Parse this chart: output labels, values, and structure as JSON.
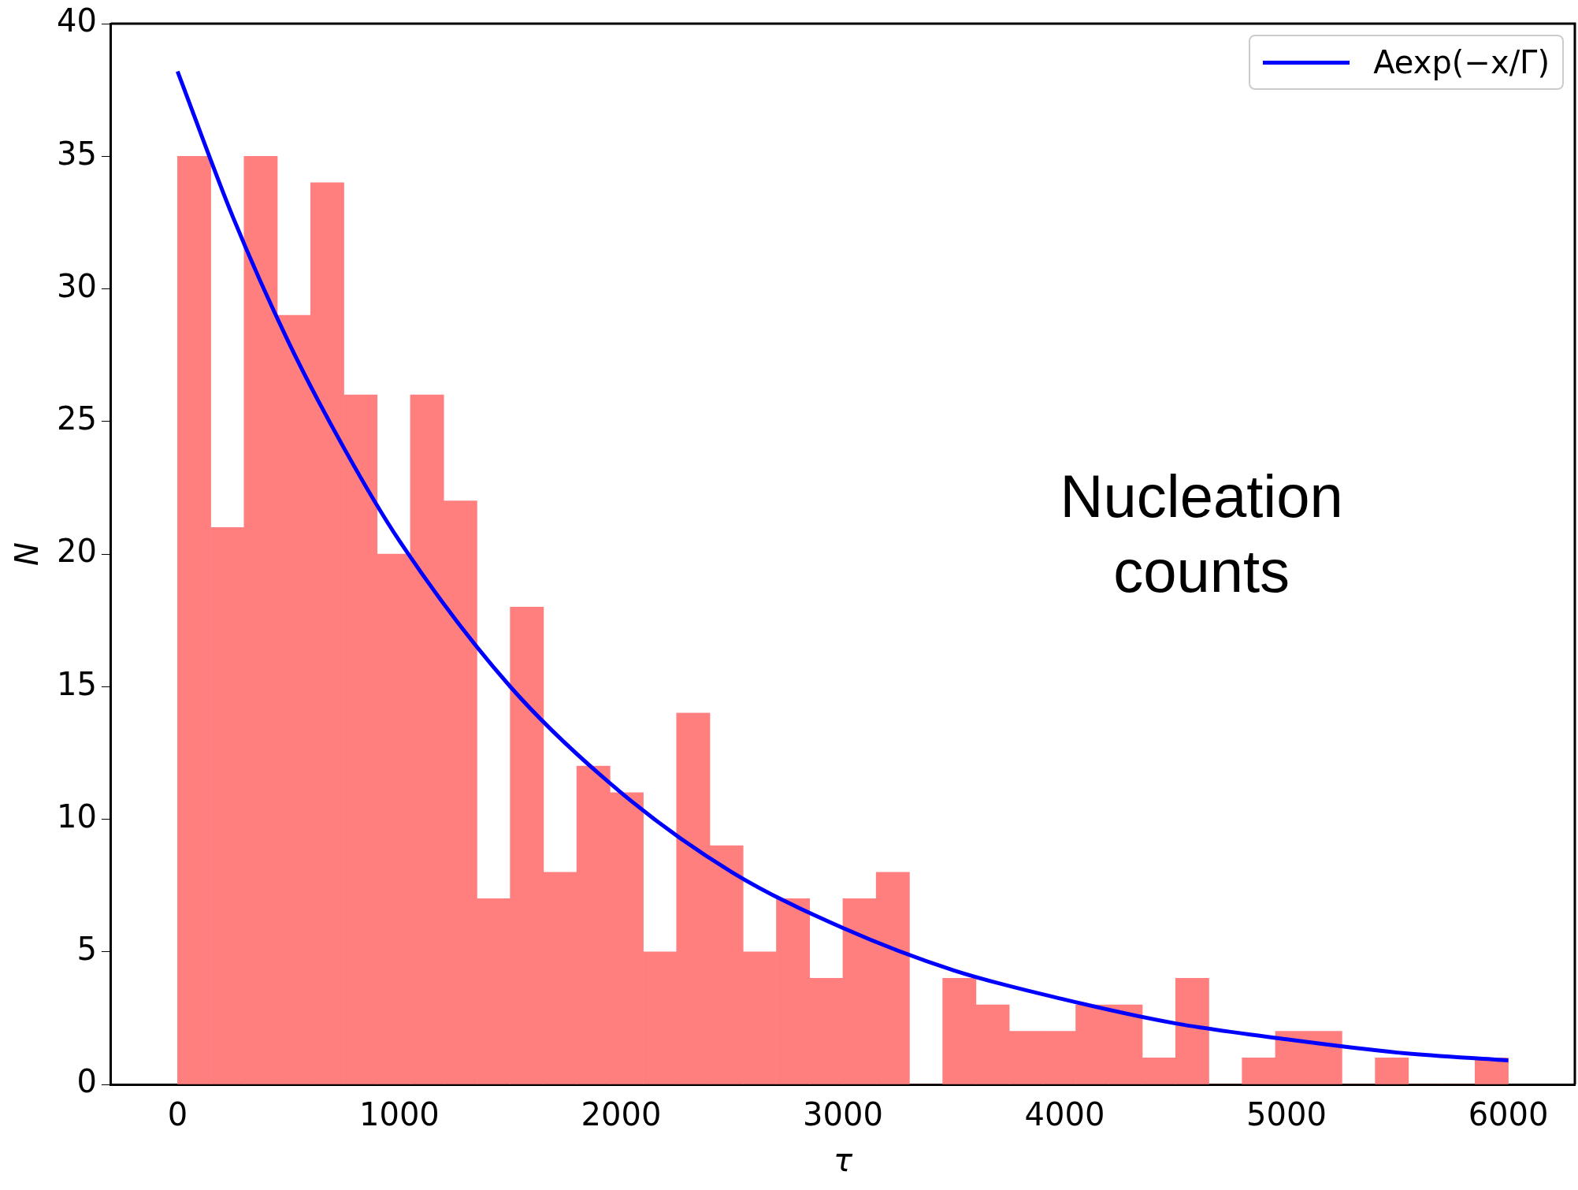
{
  "chart_data": {
    "type": "histogram",
    "xlabel": "τ",
    "ylabel": "N",
    "annotations": [
      "Nucleation counts"
    ],
    "bins": [
      0,
      150,
      300,
      450,
      600,
      750,
      900,
      1050,
      1200,
      1350,
      1500,
      1650,
      1800,
      1950,
      2100,
      2250,
      2400,
      2550,
      2700,
      2850,
      3000,
      3150,
      3300,
      3450,
      3600,
      3750,
      3900,
      4050,
      4200,
      4350,
      4500,
      4650,
      4800,
      4950,
      5100,
      5250,
      5400,
      5550,
      5700,
      5850,
      6000
    ],
    "values": [
      35,
      21,
      35,
      29,
      34,
      26,
      20,
      26,
      22,
      7,
      18,
      8,
      12,
      11,
      5,
      14,
      9,
      5,
      7,
      4,
      7,
      8,
      0,
      4,
      3,
      2,
      2,
      3,
      3,
      1,
      4,
      0,
      1,
      2,
      2,
      0,
      1,
      0,
      0,
      1
    ],
    "color": "#ff7f7f",
    "series": [
      {
        "type": "line",
        "name": "Aexp(−x/Γ)",
        "color": "#0000ff",
        "x": [
          0,
          250,
          500,
          750,
          1000,
          1500,
          2000,
          2500,
          3000,
          3500,
          4000,
          4500,
          5000,
          5500,
          6000
        ],
        "values": [
          38.2,
          32.7,
          28.0,
          24.0,
          20.5,
          15.0,
          11.0,
          8.0,
          5.9,
          4.3,
          3.2,
          2.3,
          1.7,
          1.2,
          0.9
        ]
      }
    ],
    "xlim": [
      -300,
      6300
    ],
    "ylim": [
      0,
      40
    ],
    "xticks": [
      0,
      1000,
      2000,
      3000,
      4000,
      5000,
      6000
    ],
    "yticks": [
      0,
      5,
      10,
      15,
      20,
      25,
      30,
      35,
      40
    ],
    "legend": "top right",
    "grid": false
  }
}
